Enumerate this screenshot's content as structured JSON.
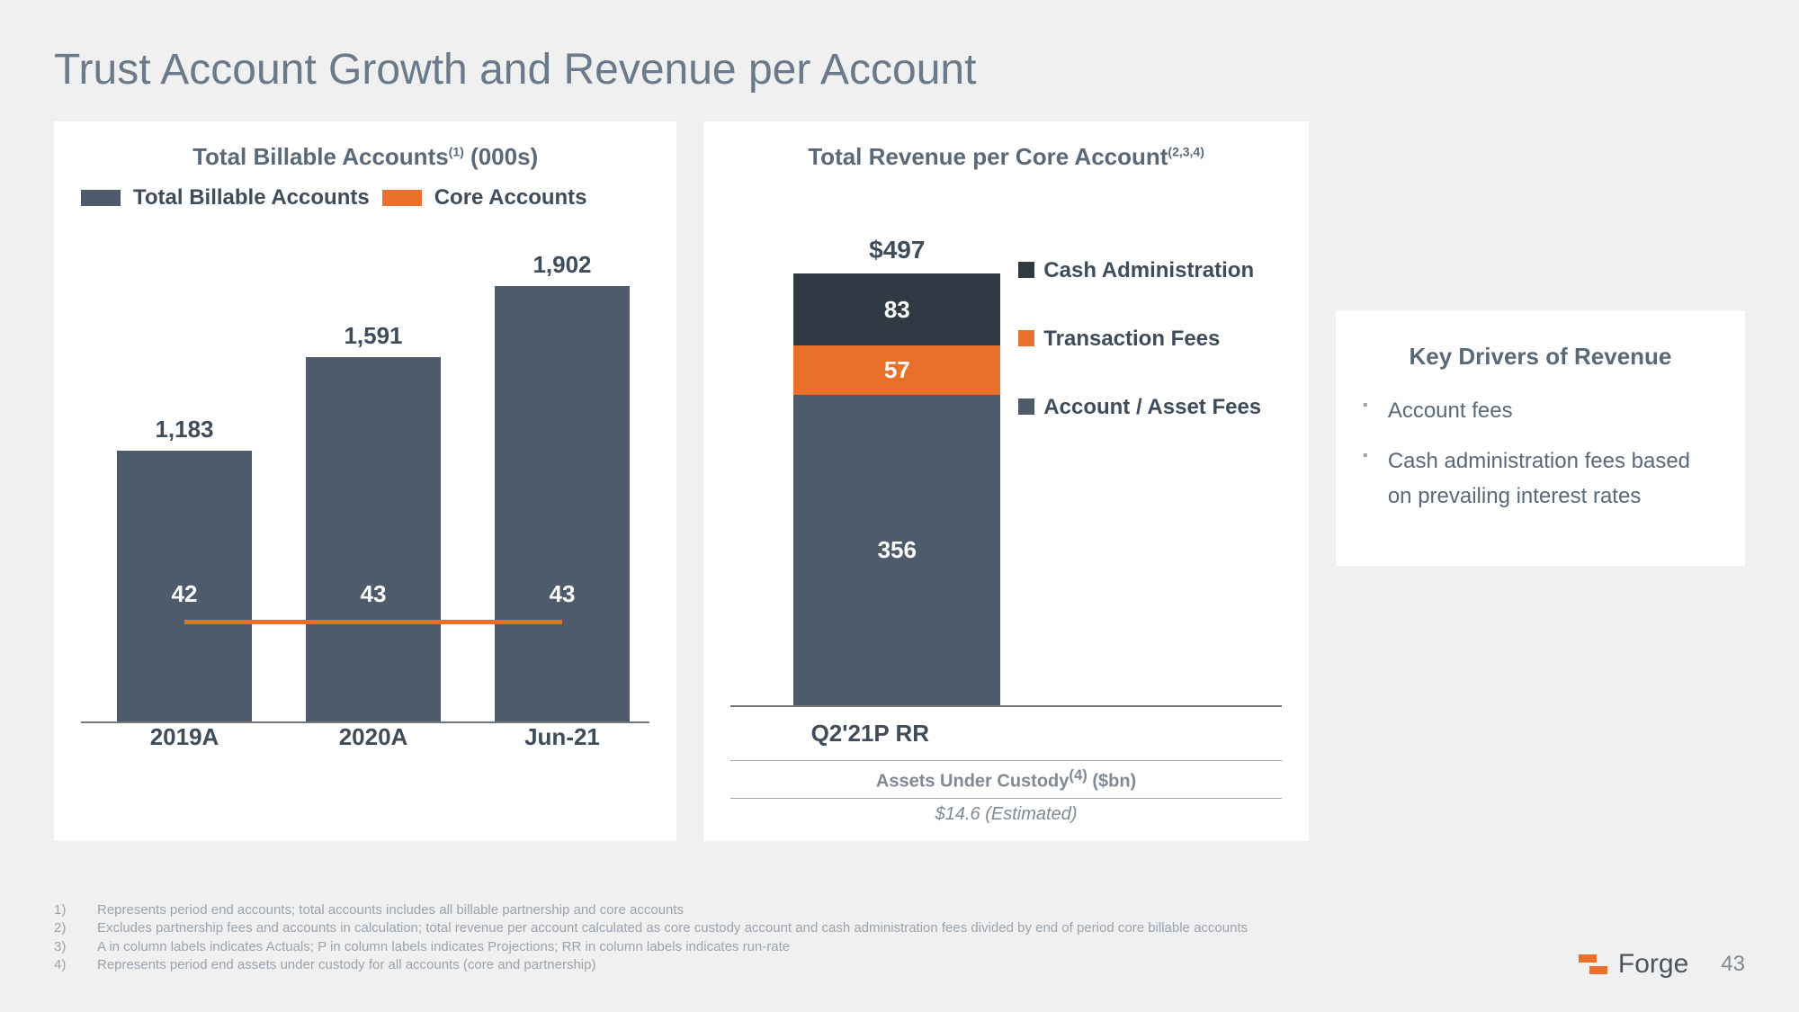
{
  "title": "Trust Account Growth and Revenue per Account",
  "colors": {
    "bar": "#4e5b6a",
    "accent": "#e8702a",
    "seg_top": "#2f3a44",
    "text_muted": "#5a6978"
  },
  "left": {
    "title_main": "Total Billable Accounts",
    "title_sup": "(1)",
    "title_suffix": " (000s)",
    "legend_bar": "Total Billable Accounts",
    "legend_line": "Core Accounts",
    "categories": [
      "2019A",
      "2020A",
      "Jun-21"
    ],
    "bar_values": [
      1183,
      1591,
      1902
    ],
    "bar_labels": [
      "1,183",
      "1,591",
      "1,902"
    ],
    "line_values": [
      42,
      43,
      43
    ],
    "ymax": 2200,
    "bar_color": "#4e5b6a",
    "line_color": "#e8702a"
  },
  "mid": {
    "title_main": "Total Revenue per Core Account",
    "title_sup": "(2,3,4)",
    "xlabel": "Q2'21P RR",
    "total_label": "$497",
    "segments": [
      {
        "label": "83",
        "value": 83,
        "color": "#2f3a44",
        "legend": "Cash Administration"
      },
      {
        "label": "57",
        "value": 57,
        "color": "#e8702a",
        "legend": "Transaction Fees"
      },
      {
        "label": "356",
        "value": 356,
        "color": "#4e5b6a",
        "legend": "Account / Asset Fees"
      }
    ],
    "auc_title_main": "Assets Under Custody",
    "auc_title_sup": "(4)",
    "auc_title_suffix": " ($bn)",
    "auc_value": "$14.6 (Estimated)"
  },
  "right": {
    "title": "Key Drivers of Revenue",
    "items": [
      "Account fees",
      "Cash administration fees based on prevailing interest rates"
    ]
  },
  "footnotes": [
    {
      "n": "1)",
      "t": "Represents period end accounts; total accounts includes all billable partnership and core accounts"
    },
    {
      "n": "2)",
      "t": "Excludes partnership fees and accounts in calculation; total revenue per account calculated as core custody account and cash administration fees divided by end of period core billable accounts"
    },
    {
      "n": "3)",
      "t": "A in column labels indicates Actuals; P in column labels indicates Projections; RR in column labels indicates run-rate"
    },
    {
      "n": "4)",
      "t": "Represents period end assets under custody for all accounts (core and partnership)"
    }
  ],
  "brand": "Forge",
  "page_number": "43"
}
